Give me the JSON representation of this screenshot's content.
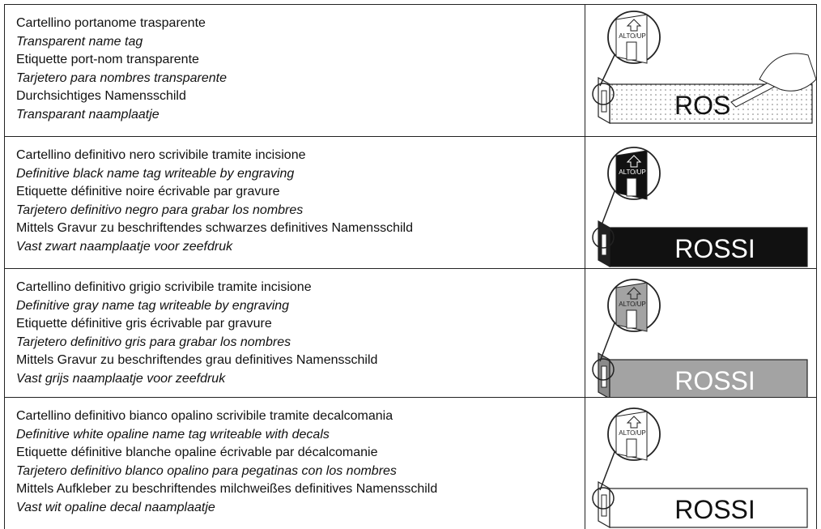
{
  "rows": [
    {
      "lines": [
        "Cartellino portanome trasparente",
        "Transparent name tag",
        "Etiquette port-nom transparente",
        "Tarjetero para nombres transparente",
        "Durchsichtiges Namensschild",
        "Transparant naamplaatje"
      ],
      "tag": {
        "up_label": "ALTO/UP",
        "name": "ROS"
      }
    },
    {
      "lines": [
        "Cartellino definitivo nero scrivibile tramite incisione",
        "Definitive black name tag writeable by engraving",
        "Etiquette définitive noire écrivable par gravure",
        "Tarjetero definitivo negro para grabar los nombres",
        "Mittels Gravur zu beschriftendes schwarzes definitives Namensschild",
        "Vast zwart naamplaatje voor zeefdruk"
      ],
      "tag": {
        "up_label": "ALTO/UP",
        "name": "ROSSI"
      }
    },
    {
      "lines": [
        "Cartellino definitivo grigio scrivibile tramite incisione",
        "Definitive gray name tag writeable by engraving",
        "Etiquette définitive gris écrivable par gravure",
        "Tarjetero definitivo gris para grabar los nombres",
        "Mittels Gravur zu beschriftendes grau definitives Namensschild",
        "Vast grijs naamplaatje voor zeefdruk"
      ],
      "tag": {
        "up_label": "ALTO/UP",
        "name": "ROSSI"
      }
    },
    {
      "lines": [
        "Cartellino definitivo bianco opalino scrivibile tramite decalcomania",
        "Definitive white opaline name tag writeable with decals",
        "Etiquette définitive blanche opaline écrivable par décalcomanie",
        "Tarjetero definitivo blanco opalino para pegatinas con los nombres",
        "Mittels Aufkleber zu beschriftendes milchweißes definitives Namensschild",
        "Vast wit opaline decal naamplaatje"
      ],
      "tag": {
        "up_label": "ALTO/UP",
        "name": "ROSSI"
      }
    }
  ]
}
